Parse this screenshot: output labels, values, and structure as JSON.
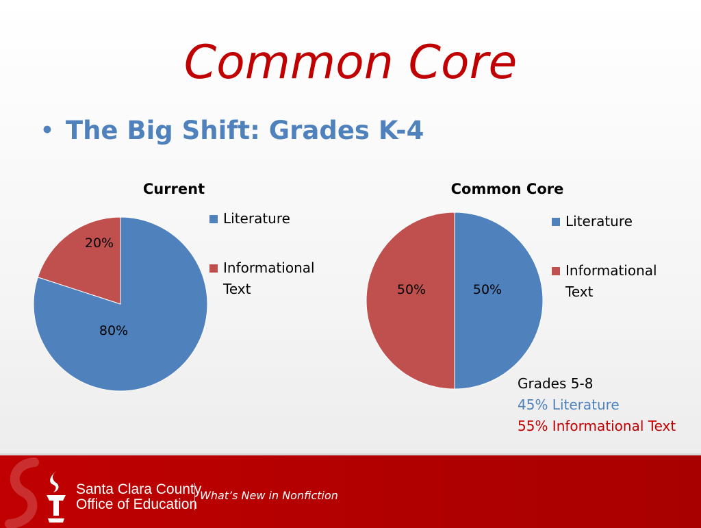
{
  "slide": {
    "title": "Common Core",
    "bullet_marker": "•",
    "bullet": "The Big Shift: Grades K-4"
  },
  "colors": {
    "title": "#c00000",
    "bullet": "#4f81bd",
    "literature": "#4f81bd",
    "informational": "#c0504d",
    "note_literature": "#4f81bd",
    "note_informational": "#c00000",
    "footer": "#b30000"
  },
  "chart_data": [
    {
      "type": "pie",
      "title": "Current",
      "categories": [
        "Literature",
        "Informational Text"
      ],
      "values": [
        80,
        20
      ],
      "data_labels": [
        "80%",
        "20%"
      ],
      "legend": [
        "Literature",
        "Informational Text"
      ],
      "legend_placement": "right"
    },
    {
      "type": "pie",
      "title": "Common Core",
      "categories": [
        "Literature",
        "Informational Text"
      ],
      "values": [
        50,
        50
      ],
      "data_labels": [
        "50%",
        "50%"
      ],
      "legend": [
        "Literature",
        "Informational Text"
      ],
      "legend_placement": "right"
    }
  ],
  "note": {
    "heading": "Grades 5-8",
    "literature": "45% Literature",
    "informational": "55% Informational Text"
  },
  "footer": {
    "org_line1": "Santa Clara County",
    "org_line2": "Office of Education",
    "tagline": "What’s New in Nonfiction",
    "logo_icon": "torch-icon"
  }
}
